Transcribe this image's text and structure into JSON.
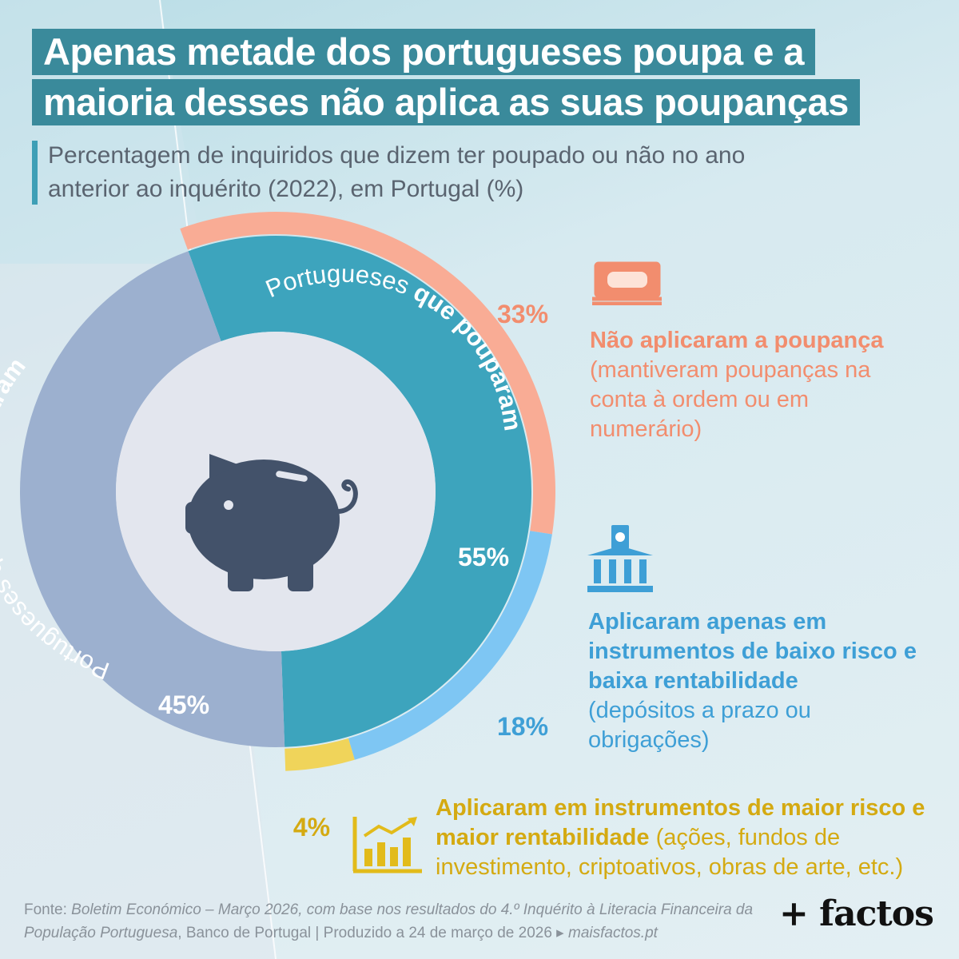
{
  "title": {
    "line1": "Apenas metade dos portugueses poupa e a",
    "line2": "maioria desses não aplica as suas poupanças"
  },
  "subtitle": "Percentagem de inquiridos que dizem ter poupado ou não no ano anterior ao inquérito (2022), em Portugal (%)",
  "chart_data": {
    "type": "pie",
    "inner_ring": [
      {
        "label_prefix": "Portugueses ",
        "label_bold": "que pouparam",
        "value": 55,
        "value_label": "55%",
        "color": "#3da4bd"
      },
      {
        "label_prefix": "Portugueses que ",
        "label_bold": "não pouparam",
        "value": 45,
        "value_label": "45%",
        "color": "#9cb0cf"
      }
    ],
    "outer_ring": [
      {
        "name": "Não aplicaram a poupança",
        "detail": "(mantiveram poupanças na conta à ordem ou em numerário)",
        "value": 33,
        "value_label": "33%",
        "color": "#f9ac95"
      },
      {
        "name": "Aplicaram apenas em instrumentos de baixo risco e baixa rentabilidade",
        "detail": "(depósitos a prazo ou obrigações)",
        "value": 18,
        "value_label": "18%",
        "color": "#7ec6f3"
      },
      {
        "name": "Aplicaram em instrumentos de maior risco e maior rentabilidade",
        "detail": "(ações, fundos de investimento, criptoativos, obras de arte, etc.)",
        "value": 4,
        "value_label": "4%",
        "color": "#f0d45a"
      }
    ]
  },
  "labels": {
    "salmon_title": "Não aplicaram a poupança",
    "salmon_detail": "(mantiveram poupanças na conta à ordem ou em numerário)",
    "blue_title": "Aplicaram apenas em instrumentos de baixo risco e baixa rentabilidade",
    "blue_detail": "(depósitos a prazo ou obrigações)",
    "yellow_title": "Aplicaram em instrumentos de maior risco e maior rentabilidade",
    "yellow_detail": "(ações, fundos de investimento, criptoativos, obras de arte, etc.)"
  },
  "icons": {
    "center": "piggy-bank-icon",
    "salmon": "money-stack-icon",
    "blue": "bank-building-icon",
    "yellow": "growth-chart-icon"
  },
  "colors": {
    "title_bg": "#3a8a9b",
    "salmon": "#f28d6e",
    "blue": "#3e9fd6",
    "yellow": "#d4aa12",
    "piggy": "#43526a"
  },
  "source": {
    "prefix": "Fonte: ",
    "publication": "Boletim Económico – Março 2026, com base nos resultados do 4.º Inquérito à Literacia Financeira da População Portuguesa",
    "publisher": ", Banco de Portugal | Produzido a 24 de março de 2026 ▸ ",
    "site": "maisfactos.pt"
  },
  "logo": "+ factos"
}
